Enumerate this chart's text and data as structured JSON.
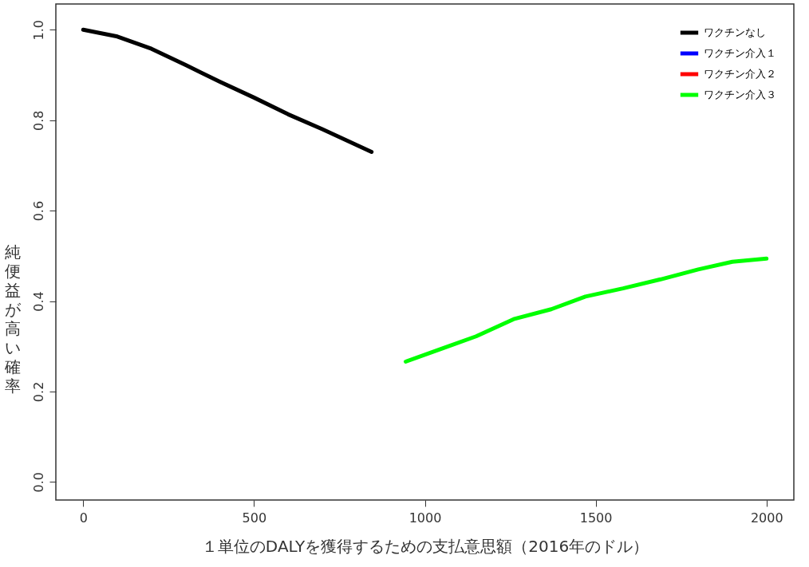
{
  "chart_data": {
    "type": "line",
    "xlabel": "１単位のDALYを獲得するための支払意思額（2016年のドル）",
    "ylabel": "純便益が高い確率",
    "xlim": [
      -80,
      2080
    ],
    "ylim": [
      -0.04,
      1.057
    ],
    "xticks": [
      0,
      500,
      1000,
      1500,
      2000
    ],
    "yticks": [
      {
        "value": 0,
        "label": "0.0"
      },
      0.2,
      0.4,
      0.6,
      0.8,
      {
        "value": 1,
        "label": "1.0"
      }
    ],
    "grid": false,
    "legend": "top right",
    "line_style": "solid",
    "marker": "none",
    "series": [
      {
        "name": "ワクチンなし",
        "color": "#000000",
        "x": [
          0,
          100,
          200,
          300,
          400,
          500,
          600,
          700,
          844
        ],
        "values": [
          1.0,
          0.985,
          0.958,
          0.922,
          0.885,
          0.85,
          0.813,
          0.78,
          0.73
        ]
      },
      {
        "name": "ワクチン介入１",
        "color": "#0000ff"
      },
      {
        "name": "ワクチン介入２",
        "color": "#ff0000"
      },
      {
        "name": "ワクチン介入３",
        "color": "#00ff00",
        "x": [
          944,
          1050,
          1150,
          1260,
          1370,
          1470,
          1580,
          1690,
          1800,
          1900,
          2000
        ],
        "values": [
          0.266,
          0.295,
          0.322,
          0.36,
          0.382,
          0.41,
          0.428,
          0.448,
          0.47,
          0.487,
          0.494
        ]
      }
    ]
  }
}
